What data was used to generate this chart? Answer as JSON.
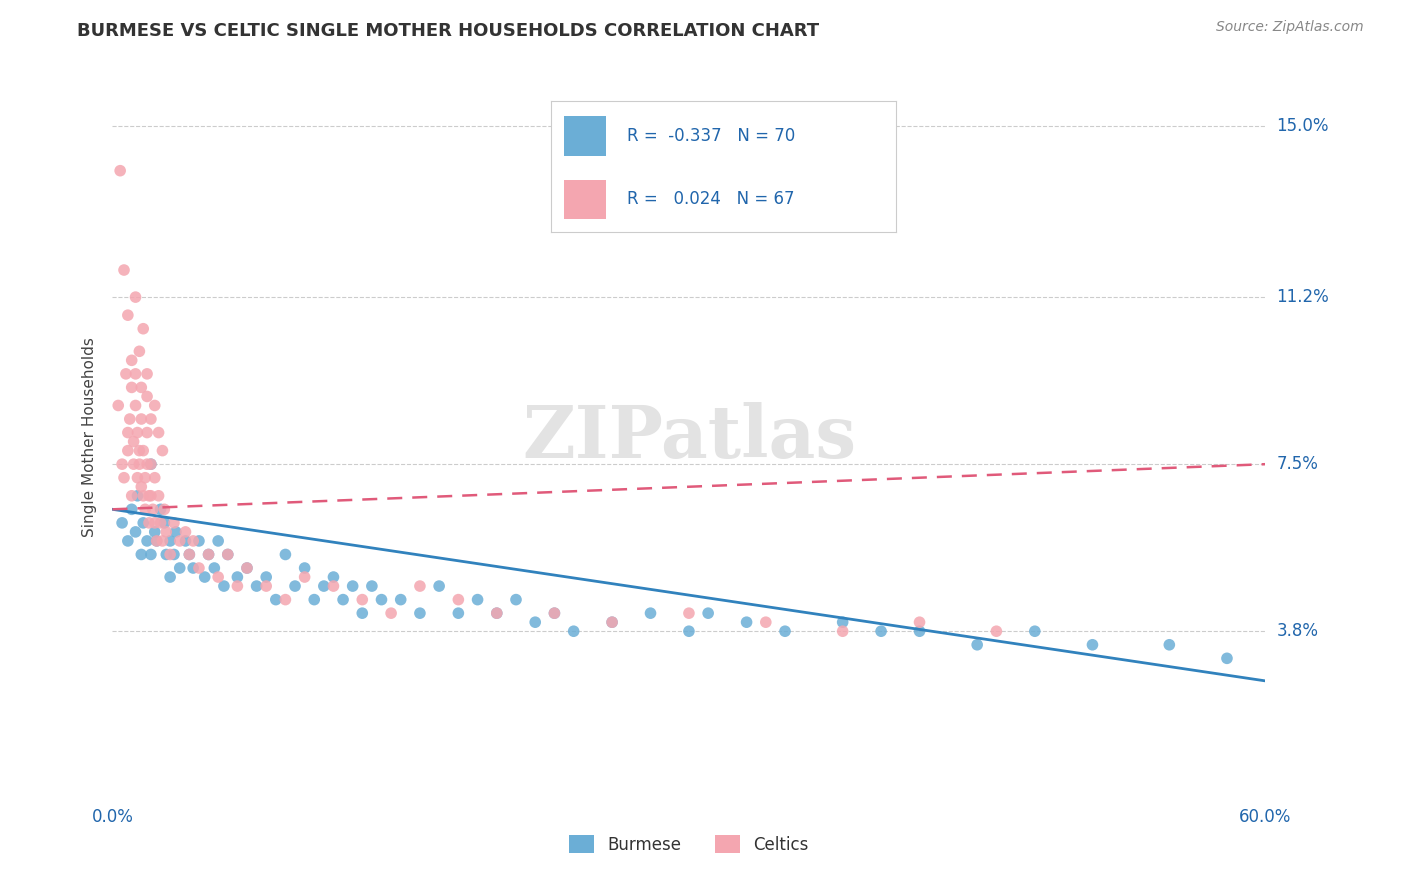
{
  "title": "BURMESE VS CELTIC SINGLE MOTHER HOUSEHOLDS CORRELATION CHART",
  "source": "Source: ZipAtlas.com",
  "xlabel": "",
  "ylabel": "Single Mother Households",
  "xlim": [
    0.0,
    0.6
  ],
  "ylim": [
    0.0,
    0.162
  ],
  "yticks": [
    0.038,
    0.075,
    0.112,
    0.15
  ],
  "ytick_labels": [
    "3.8%",
    "7.5%",
    "11.2%",
    "15.0%"
  ],
  "xticks": [
    0.0,
    0.6
  ],
  "xtick_labels": [
    "0.0%",
    "60.0%"
  ],
  "burmese_color": "#6baed6",
  "celtics_color": "#f4a6b0",
  "burmese_line_color": "#3182bd",
  "celtics_line_color": "#e05a7a",
  "burmese_R": -0.337,
  "burmese_N": 70,
  "celtics_R": 0.024,
  "celtics_N": 67,
  "legend_R_color": "#2166ac",
  "grid_color": "#cccccc",
  "background_color": "#ffffff",
  "burmese_x": [
    0.005,
    0.008,
    0.01,
    0.012,
    0.013,
    0.015,
    0.016,
    0.018,
    0.02,
    0.02,
    0.022,
    0.023,
    0.025,
    0.027,
    0.028,
    0.03,
    0.03,
    0.032,
    0.033,
    0.035,
    0.038,
    0.04,
    0.042,
    0.045,
    0.048,
    0.05,
    0.053,
    0.055,
    0.058,
    0.06,
    0.065,
    0.07,
    0.075,
    0.08,
    0.085,
    0.09,
    0.095,
    0.1,
    0.105,
    0.11,
    0.115,
    0.12,
    0.125,
    0.13,
    0.135,
    0.14,
    0.15,
    0.16,
    0.17,
    0.18,
    0.19,
    0.2,
    0.21,
    0.22,
    0.23,
    0.24,
    0.26,
    0.28,
    0.3,
    0.31,
    0.33,
    0.35,
    0.38,
    0.4,
    0.42,
    0.45,
    0.48,
    0.51,
    0.55,
    0.58
  ],
  "burmese_y": [
    0.062,
    0.058,
    0.065,
    0.06,
    0.068,
    0.055,
    0.062,
    0.058,
    0.055,
    0.075,
    0.06,
    0.058,
    0.065,
    0.062,
    0.055,
    0.058,
    0.05,
    0.055,
    0.06,
    0.052,
    0.058,
    0.055,
    0.052,
    0.058,
    0.05,
    0.055,
    0.052,
    0.058,
    0.048,
    0.055,
    0.05,
    0.052,
    0.048,
    0.05,
    0.045,
    0.055,
    0.048,
    0.052,
    0.045,
    0.048,
    0.05,
    0.045,
    0.048,
    0.042,
    0.048,
    0.045,
    0.045,
    0.042,
    0.048,
    0.042,
    0.045,
    0.042,
    0.045,
    0.04,
    0.042,
    0.038,
    0.04,
    0.042,
    0.038,
    0.042,
    0.04,
    0.038,
    0.04,
    0.038,
    0.038,
    0.035,
    0.038,
    0.035,
    0.035,
    0.032
  ],
  "celtics_x": [
    0.003,
    0.005,
    0.006,
    0.007,
    0.008,
    0.008,
    0.009,
    0.01,
    0.01,
    0.011,
    0.011,
    0.012,
    0.012,
    0.013,
    0.013,
    0.014,
    0.014,
    0.015,
    0.015,
    0.015,
    0.016,
    0.016,
    0.017,
    0.017,
    0.018,
    0.018,
    0.019,
    0.019,
    0.02,
    0.02,
    0.021,
    0.022,
    0.022,
    0.023,
    0.024,
    0.025,
    0.026,
    0.027,
    0.028,
    0.03,
    0.032,
    0.035,
    0.038,
    0.04,
    0.042,
    0.045,
    0.05,
    0.055,
    0.06,
    0.065,
    0.07,
    0.08,
    0.09,
    0.1,
    0.115,
    0.13,
    0.145,
    0.16,
    0.18,
    0.2,
    0.23,
    0.26,
    0.3,
    0.34,
    0.38,
    0.42,
    0.46
  ],
  "celtics_y": [
    0.088,
    0.075,
    0.072,
    0.095,
    0.082,
    0.078,
    0.085,
    0.068,
    0.092,
    0.075,
    0.08,
    0.095,
    0.088,
    0.072,
    0.082,
    0.078,
    0.075,
    0.092,
    0.085,
    0.07,
    0.068,
    0.078,
    0.072,
    0.065,
    0.082,
    0.075,
    0.068,
    0.062,
    0.075,
    0.068,
    0.065,
    0.072,
    0.062,
    0.058,
    0.068,
    0.062,
    0.058,
    0.065,
    0.06,
    0.055,
    0.062,
    0.058,
    0.06,
    0.055,
    0.058,
    0.052,
    0.055,
    0.05,
    0.055,
    0.048,
    0.052,
    0.048,
    0.045,
    0.05,
    0.048,
    0.045,
    0.042,
    0.048,
    0.045,
    0.042,
    0.042,
    0.04,
    0.042,
    0.04,
    0.038,
    0.04,
    0.038
  ],
  "celtics_outliers_x": [
    0.004,
    0.006,
    0.008,
    0.01,
    0.012,
    0.014,
    0.016,
    0.018,
    0.018,
    0.02,
    0.022,
    0.024,
    0.026
  ],
  "celtics_outliers_y": [
    0.14,
    0.118,
    0.108,
    0.098,
    0.112,
    0.1,
    0.105,
    0.09,
    0.095,
    0.085,
    0.088,
    0.082,
    0.078
  ]
}
